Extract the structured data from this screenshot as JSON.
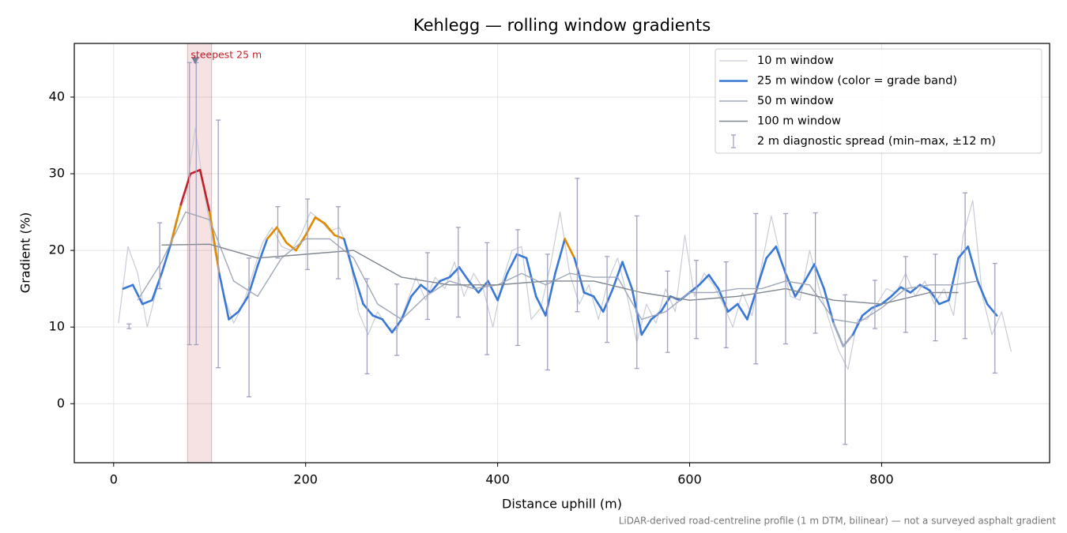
{
  "chart_data": {
    "type": "line",
    "title": "Kehlegg — rolling window gradients",
    "xlabel": "Distance uphill (m)",
    "ylabel": "Gradient (%)",
    "footnote": "LiDAR-derived road-centreline profile (1 m DTM, bilinear) — not a surveyed asphalt gradient",
    "xlim": [
      -41,
      975
    ],
    "ylim": [
      -7.7,
      47
    ],
    "xticks": [
      0,
      200,
      400,
      600,
      800
    ],
    "yticks": [
      0,
      10,
      20,
      30,
      40
    ],
    "grid": true,
    "legend": "upper right",
    "series": [
      {
        "name": "10 m window",
        "color": "#c8ccd6",
        "width": 1.2,
        "x": [
          5,
          15,
          25,
          35,
          45,
          55,
          65,
          75,
          85,
          95,
          105,
          115,
          125,
          135,
          145,
          155,
          165,
          175,
          185,
          195,
          205,
          215,
          225,
          235,
          245,
          255,
          265,
          275,
          285,
          295,
          305,
          315,
          325,
          335,
          345,
          355,
          365,
          375,
          385,
          395,
          405,
          415,
          425,
          435,
          445,
          455,
          465,
          475,
          485,
          495,
          505,
          515,
          525,
          535,
          545,
          555,
          565,
          575,
          585,
          595,
          605,
          615,
          625,
          635,
          645,
          655,
          665,
          675,
          685,
          695,
          705,
          715,
          725,
          735,
          745,
          755,
          765,
          775,
          785,
          795,
          805,
          815,
          825,
          835,
          845,
          855,
          865,
          875,
          885,
          895,
          905,
          915,
          925,
          935
        ],
        "values": [
          10.5,
          20.5,
          17,
          10,
          15,
          19,
          24,
          27,
          36,
          27,
          20,
          14,
          10.5,
          13,
          17,
          21,
          23,
          20.5,
          20,
          22,
          25,
          24,
          22.5,
          23,
          20,
          12,
          9,
          12,
          10,
          9.5,
          13,
          16.5,
          13.5,
          16.5,
          15,
          18.5,
          14,
          17,
          15,
          10,
          16,
          20,
          20.5,
          11,
          12.5,
          18,
          25,
          17,
          13,
          15.5,
          11,
          16,
          19,
          14,
          8,
          13,
          10.5,
          15,
          12,
          22,
          14,
          17,
          15.5,
          13,
          10,
          14.5,
          11.5,
          18,
          24.5,
          19,
          14,
          13.5,
          20,
          15,
          11,
          7,
          4.5,
          11,
          11,
          13,
          15,
          14.5,
          17,
          14,
          16,
          13,
          15,
          11.5,
          22,
          26.5,
          14,
          9,
          12,
          6.8
        ]
      },
      {
        "name": "25 m window (color = grade band)",
        "color": "#3a78d4",
        "width": 2.6,
        "band_edges": [
          10,
          20,
          25
        ],
        "band_colors": [
          "#9aa8c2",
          "#3a78d4",
          "#e08a00",
          "#c0202a"
        ],
        "x": [
          10,
          20,
          30,
          40,
          50,
          60,
          70,
          80,
          90,
          100,
          110,
          120,
          130,
          140,
          150,
          160,
          170,
          180,
          190,
          200,
          210,
          220,
          230,
          240,
          250,
          260,
          270,
          280,
          290,
          300,
          310,
          320,
          330,
          340,
          350,
          360,
          370,
          380,
          390,
          400,
          410,
          420,
          430,
          440,
          450,
          460,
          470,
          480,
          490,
          500,
          510,
          520,
          530,
          540,
          550,
          560,
          570,
          580,
          590,
          600,
          610,
          620,
          630,
          640,
          650,
          660,
          670,
          680,
          690,
          700,
          710,
          720,
          730,
          740,
          750,
          760,
          770,
          780,
          790,
          800,
          810,
          820,
          830,
          840,
          850,
          860,
          870,
          880,
          890,
          900,
          910,
          920
        ],
        "values": [
          15,
          15.5,
          13,
          13.5,
          17,
          21,
          26,
          30,
          30.5,
          25,
          17,
          11,
          12,
          14,
          18,
          21.5,
          23,
          21,
          20,
          22,
          24.3,
          23.5,
          22,
          21.5,
          17,
          13,
          11.5,
          11,
          9.3,
          11,
          14,
          15.5,
          14.5,
          16,
          16.5,
          17.8,
          16,
          14.5,
          16,
          13.5,
          17,
          19.5,
          19,
          14,
          11.5,
          17,
          21.5,
          19,
          14.5,
          14,
          12,
          15,
          18.5,
          15,
          9,
          11,
          12,
          14,
          13.5,
          14.5,
          15.5,
          16.8,
          15,
          12,
          13,
          11,
          15,
          19,
          20.5,
          17,
          14,
          16,
          18.2,
          15,
          10.5,
          7.5,
          9,
          11.5,
          12.5,
          13,
          14,
          15.2,
          14.5,
          15.5,
          14.8,
          13,
          13.5,
          19,
          20.5,
          16,
          13,
          11.5
        ]
      },
      {
        "name": "50 m window",
        "color": "#a0a8b8",
        "width": 1.4,
        "x": [
          25,
          50,
          75,
          100,
          125,
          150,
          175,
          200,
          225,
          250,
          275,
          300,
          325,
          350,
          375,
          400,
          425,
          450,
          475,
          500,
          525,
          550,
          575,
          600,
          625,
          650,
          675,
          700,
          725,
          750,
          775,
          800,
          825,
          850,
          875,
          900
        ],
        "values": [
          13.5,
          18.5,
          25,
          24,
          16,
          14,
          19,
          21.5,
          21.5,
          19,
          13,
          11,
          14,
          16,
          15,
          15.5,
          17,
          15.5,
          17,
          16.5,
          16.5,
          11,
          12,
          14.5,
          14.5,
          15,
          15,
          16,
          15.5,
          11,
          10.5,
          12.5,
          15,
          15.5,
          15.5,
          16
        ]
      },
      {
        "name": "100 m window",
        "color": "#80868f",
        "width": 1.4,
        "x": [
          50,
          100,
          150,
          200,
          250,
          300,
          350,
          400,
          450,
          500,
          550,
          600,
          650,
          700,
          750,
          800,
          850,
          880
        ],
        "values": [
          20.7,
          20.8,
          19,
          19.5,
          20,
          16.5,
          15.5,
          15.5,
          16,
          16,
          14.5,
          13.5,
          14,
          15,
          13.5,
          13,
          14.5,
          14.5
        ]
      }
    ],
    "spread": {
      "name": "2 m diagnostic spread (min–max, ±12 m)",
      "color": "#a0a0c0",
      "x": [
        16,
        48,
        79,
        86,
        109,
        141,
        171,
        202,
        234,
        264,
        295,
        327,
        359,
        389,
        421,
        452,
        483,
        514,
        545,
        577,
        607,
        638,
        669,
        700,
        731,
        762,
        793,
        825,
        856,
        887,
        918
      ],
      "low": [
        9.8,
        15,
        7.7,
        7.7,
        4.7,
        0.9,
        19,
        17.5,
        16.3,
        3.9,
        6.3,
        11,
        11.3,
        6.4,
        7.6,
        4.4,
        12,
        8,
        4.6,
        6.7,
        8.5,
        7.3,
        5.2,
        7.8,
        9.2,
        -5.3,
        9.8,
        9.3,
        8.2,
        8.5,
        4
      ],
      "high": [
        10.4,
        23.6,
        44.5,
        44.5,
        37,
        19,
        25.7,
        26.7,
        25.7,
        16.3,
        15.6,
        19.7,
        23,
        21,
        22.7,
        19.5,
        29.4,
        19.2,
        24.5,
        17.3,
        18.7,
        18.5,
        24.8,
        24.8,
        24.9,
        14.2,
        16.1,
        19.2,
        19.5,
        27.5,
        18.3
      ]
    },
    "highlight": {
      "label": "steepest 25 m",
      "x": [
        77,
        102
      ],
      "marker": [
        85,
        44.7
      ],
      "color": "#c0202a"
    }
  }
}
